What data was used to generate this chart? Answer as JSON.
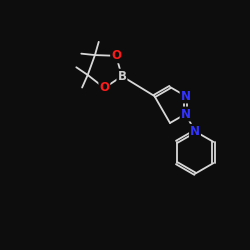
{
  "bg_color": "#0d0d0d",
  "bond_color": "#d8d8d8",
  "N_color": "#3333ff",
  "O_color": "#ff1a1a",
  "B_color": "#cccccc",
  "font_size_atom": 8.5,
  "line_width": 1.3,
  "fig_size": [
    2.5,
    2.5
  ],
  "dpi": 100,
  "xlim": [
    0,
    10
  ],
  "ylim": [
    0,
    10
  ]
}
